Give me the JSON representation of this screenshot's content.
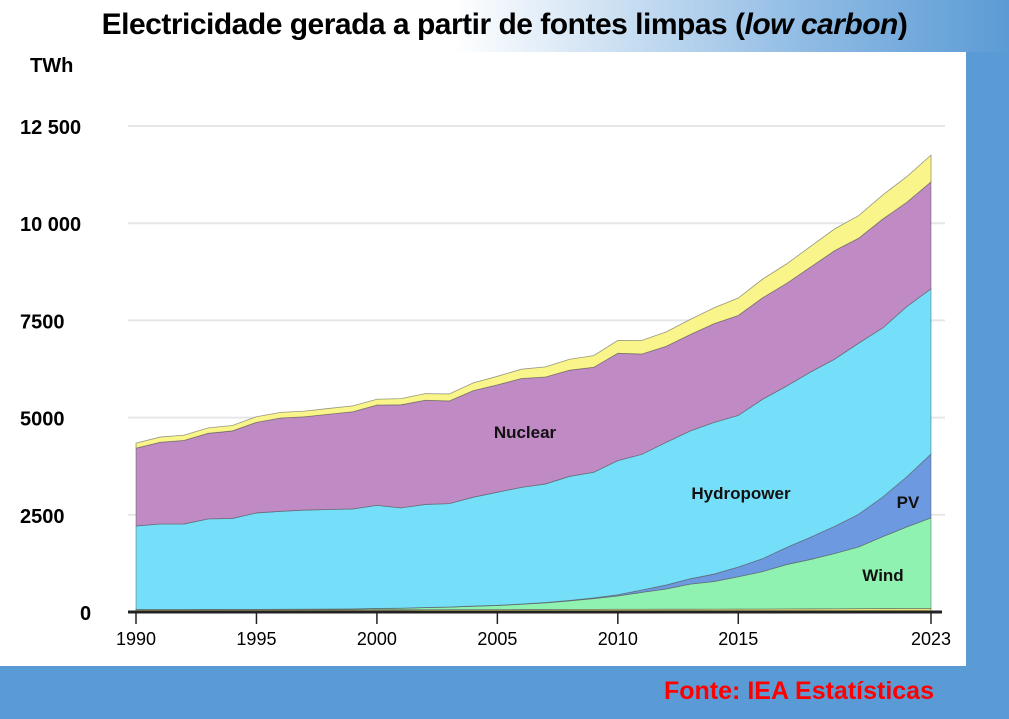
{
  "title": {
    "main": "Electricidade gerada a partir de fontes limpas (",
    "italic": "low carbon",
    "end": ")"
  },
  "source": "Fonte: IEA Estatísticas",
  "chart_data": {
    "type": "area",
    "stacked": true,
    "title": "Electricidade gerada a partir de fontes limpas (low carbon)",
    "ylabel": "TWh",
    "xlabel": "",
    "ylim": [
      0,
      12500
    ],
    "xlim": [
      1990,
      2023
    ],
    "yticks": [
      0,
      2500,
      5000,
      7500,
      10000,
      12500
    ],
    "ytick_labels": [
      "0",
      "2500",
      "5000",
      "7500",
      "10 000",
      "12 500"
    ],
    "xticks": [
      1990,
      1995,
      2000,
      2005,
      2010,
      2015,
      2023
    ],
    "xtick_labels": [
      "1990",
      "1995",
      "2000",
      "2005",
      "2010",
      "2015",
      "2023"
    ],
    "grid": true,
    "x": [
      1990,
      1991,
      1992,
      1993,
      1994,
      1995,
      1996,
      1997,
      1998,
      1999,
      2000,
      2001,
      2002,
      2003,
      2004,
      2005,
      2006,
      2007,
      2008,
      2009,
      2010,
      2011,
      2012,
      2013,
      2014,
      2015,
      2016,
      2017,
      2018,
      2019,
      2020,
      2021,
      2022,
      2023
    ],
    "series": [
      {
        "name": "Other (base)",
        "label": "",
        "color": "#e8e27a",
        "values": [
          60,
          60,
          60,
          60,
          60,
          60,
          60,
          60,
          60,
          60,
          60,
          60,
          62,
          62,
          64,
          64,
          66,
          66,
          68,
          68,
          70,
          70,
          72,
          72,
          74,
          76,
          78,
          80,
          82,
          84,
          86,
          88,
          90,
          92
        ]
      },
      {
        "name": "Wind",
        "label": "Wind",
        "color": "#90f2b0",
        "values": [
          4,
          4,
          5,
          6,
          7,
          8,
          10,
          12,
          16,
          21,
          31,
          38,
          52,
          63,
          85,
          104,
          133,
          170,
          220,
          276,
          342,
          434,
          521,
          645,
          712,
          830,
          960,
          1140,
          1270,
          1420,
          1590,
          1850,
          2100,
          2330
        ]
      },
      {
        "name": "PV",
        "label": "PV",
        "color": "#6d99e0",
        "values": [
          0,
          0,
          0,
          0,
          0,
          0,
          0,
          0,
          0,
          0,
          1,
          1,
          2,
          3,
          4,
          4,
          6,
          8,
          12,
          20,
          32,
          62,
          100,
          137,
          190,
          250,
          330,
          440,
          570,
          700,
          840,
          1020,
          1290,
          1640
        ]
      },
      {
        "name": "Hydropower",
        "label": "Hydropower",
        "color": "#75def9",
        "values": [
          2150,
          2200,
          2200,
          2330,
          2340,
          2480,
          2520,
          2550,
          2560,
          2570,
          2650,
          2580,
          2650,
          2660,
          2800,
          2910,
          3000,
          3050,
          3190,
          3230,
          3450,
          3490,
          3670,
          3800,
          3900,
          3900,
          4100,
          4150,
          4250,
          4300,
          4400,
          4350,
          4380,
          4250
        ]
      },
      {
        "name": "Nuclear",
        "label": "Nuclear",
        "color": "#c08ac4",
        "values": [
          2000,
          2100,
          2150,
          2200,
          2250,
          2330,
          2400,
          2400,
          2450,
          2500,
          2580,
          2650,
          2680,
          2640,
          2740,
          2760,
          2800,
          2750,
          2730,
          2700,
          2760,
          2580,
          2470,
          2480,
          2540,
          2570,
          2610,
          2640,
          2700,
          2790,
          2700,
          2800,
          2680,
          2750
        ]
      },
      {
        "name": "Other (top)",
        "label": "",
        "color": "#f9f58a",
        "values": [
          130,
          135,
          135,
          140,
          140,
          145,
          145,
          145,
          150,
          150,
          150,
          160,
          170,
          180,
          200,
          220,
          240,
          260,
          280,
          300,
          330,
          350,
          370,
          390,
          410,
          450,
          480,
          500,
          530,
          560,
          580,
          620,
          660,
          690
        ]
      }
    ]
  }
}
